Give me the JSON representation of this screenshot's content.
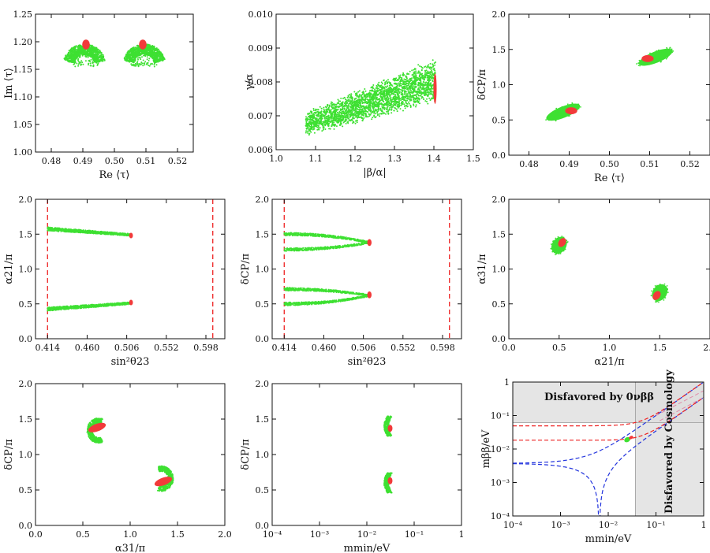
{
  "colors": {
    "green": "#3ee032",
    "red": "#f23a3a",
    "blue_dash": "#2233dd",
    "red_dash": "#ee2222",
    "pink_dash": "#e08aa8",
    "shade": "#dcdcdc"
  },
  "chart_data": [
    {
      "id": "p1",
      "type": "scatter",
      "xlabel": "Re ⟨τ⟩",
      "ylabel": "Im ⟨τ⟩",
      "xlim": [
        0.475,
        0.525
      ],
      "ylim": [
        1.0,
        1.25
      ],
      "xticks": [
        "0.48",
        "0.49",
        "0.50",
        "0.51",
        "0.52"
      ],
      "yticks": [
        "1.00",
        "1.05",
        "1.10",
        "1.15",
        "1.20",
        "1.25"
      ],
      "series": [
        {
          "name": "allowed",
          "color": "green",
          "regions": [
            {
              "shape": "crescent",
              "cx": 0.4905,
              "cy": 1.17,
              "rx": 0.0055,
              "ry": 0.035,
              "open": "down"
            },
            {
              "shape": "crescent",
              "cx": 0.5095,
              "cy": 1.17,
              "rx": 0.0055,
              "ry": 0.035,
              "open": "down"
            }
          ]
        },
        {
          "name": "best fit",
          "color": "red",
          "regions": [
            {
              "shape": "blob",
              "cx": 0.491,
              "cy": 1.195,
              "rx": 0.0012,
              "ry": 0.009
            },
            {
              "shape": "blob",
              "cx": 0.509,
              "cy": 1.195,
              "rx": 0.0012,
              "ry": 0.009
            }
          ]
        }
      ]
    },
    {
      "id": "p2",
      "type": "scatter",
      "xlabel": "|β/α|",
      "ylabel": "γ/α",
      "xlim": [
        1.0,
        1.5
      ],
      "ylim": [
        0.006,
        0.01
      ],
      "xticks": [
        "1.0",
        "1.1",
        "1.2",
        "1.3",
        "1.4",
        "1.5"
      ],
      "yticks": [
        "0.006",
        "0.007",
        "0.008",
        "0.009",
        "0.010"
      ],
      "series": [
        {
          "name": "allowed",
          "color": "green",
          "regions": [
            {
              "shape": "band",
              "x0": 1.075,
              "x1": 1.405,
              "y0_lo": 0.0064,
              "y0_hi": 0.0071,
              "y1_lo": 0.0074,
              "y1_hi": 0.0087
            }
          ]
        },
        {
          "name": "best fit",
          "color": "red",
          "regions": [
            {
              "shape": "blob",
              "cx": 1.403,
              "cy": 0.0078,
              "rx": 0.004,
              "ry": 0.00045
            }
          ]
        }
      ]
    },
    {
      "id": "p3",
      "type": "scatter",
      "xlabel": "Re ⟨τ⟩",
      "ylabel": "δCP/π",
      "xlim": [
        0.475,
        0.525
      ],
      "ylim": [
        0.0,
        2.0
      ],
      "xticks": [
        "0.48",
        "0.49",
        "0.50",
        "0.51",
        "0.52"
      ],
      "yticks": [
        "0.0",
        "0.5",
        "1.0",
        "1.5",
        "2.0"
      ],
      "series": [
        {
          "name": "allowed",
          "color": "green",
          "regions": [
            {
              "shape": "rotblob",
              "cx": 0.4885,
              "cy": 0.61,
              "rx": 0.0045,
              "ry": 0.08,
              "angle": -22
            },
            {
              "shape": "rotblob",
              "cx": 0.5115,
              "cy": 1.39,
              "rx": 0.0045,
              "ry": 0.08,
              "angle": -22
            }
          ]
        },
        {
          "name": "best fit",
          "color": "red",
          "regions": [
            {
              "shape": "blob",
              "cx": 0.4905,
              "cy": 0.63,
              "rx": 0.0015,
              "ry": 0.05
            },
            {
              "shape": "blob",
              "cx": 0.5095,
              "cy": 1.37,
              "rx": 0.0015,
              "ry": 0.05
            }
          ]
        }
      ]
    },
    {
      "id": "p4",
      "type": "scatter",
      "xlabel": "sin²θ23",
      "ylabel": "α21/π",
      "xlim": [
        0.4,
        0.62
      ],
      "ylim": [
        0.0,
        2.0
      ],
      "xticks": [
        "0.414",
        "0.460",
        "0.506",
        "0.552",
        "0.598"
      ],
      "xtick_values": [
        0.414,
        0.46,
        0.506,
        0.552,
        0.598
      ],
      "yticks": [
        "0.0",
        "0.5",
        "1.0",
        "1.5",
        "2.0"
      ],
      "vlines": [
        0.414,
        0.606
      ],
      "series": [
        {
          "name": "allowed",
          "color": "green",
          "regions": [
            {
              "shape": "strip",
              "x0": 0.414,
              "x1": 0.511,
              "y0": 1.575,
              "y1": 1.49,
              "w0": 0.05,
              "w1": 0.03
            },
            {
              "shape": "strip",
              "x0": 0.414,
              "x1": 0.511,
              "y0": 0.425,
              "y1": 0.51,
              "w0": 0.05,
              "w1": 0.03
            }
          ]
        },
        {
          "name": "best fit",
          "color": "red",
          "regions": [
            {
              "shape": "blob",
              "cx": 0.511,
              "cy": 1.48,
              "rx": 0.0022,
              "ry": 0.04
            },
            {
              "shape": "blob",
              "cx": 0.511,
              "cy": 0.52,
              "rx": 0.0022,
              "ry": 0.04
            }
          ]
        }
      ]
    },
    {
      "id": "p5",
      "type": "scatter",
      "xlabel": "sin²θ23",
      "ylabel": "δCP/π",
      "xlim": [
        0.4,
        0.62
      ],
      "ylim": [
        0.0,
        2.0
      ],
      "xticks": [
        "0.414",
        "0.460",
        "0.506",
        "0.552",
        "0.598"
      ],
      "xtick_values": [
        0.414,
        0.46,
        0.506,
        0.552,
        0.598
      ],
      "yticks": [
        "0.0",
        "0.5",
        "1.0",
        "1.5",
        "2.0"
      ],
      "vlines": [
        0.414,
        0.606
      ],
      "series": [
        {
          "name": "allowed",
          "color": "green",
          "regions": [
            {
              "shape": "vshape",
              "x0": 0.414,
              "x1": 0.513,
              "ytop": 1.5,
              "ybot": 1.28,
              "ytip": 1.38,
              "w": 0.045
            },
            {
              "shape": "vshape",
              "x0": 0.414,
              "x1": 0.513,
              "ytop": 0.71,
              "ybot": 0.5,
              "ytip": 0.62,
              "w": 0.045
            }
          ]
        },
        {
          "name": "best fit",
          "color": "red",
          "regions": [
            {
              "shape": "blob",
              "cx": 0.513,
              "cy": 1.38,
              "rx": 0.0025,
              "ry": 0.05
            },
            {
              "shape": "blob",
              "cx": 0.513,
              "cy": 0.63,
              "rx": 0.0025,
              "ry": 0.05
            }
          ]
        }
      ]
    },
    {
      "id": "p6",
      "type": "scatter",
      "xlabel": "α21/π",
      "ylabel": "α31/π",
      "xlim": [
        0.0,
        2.0
      ],
      "ylim": [
        0.0,
        2.0
      ],
      "xticks": [
        "0.0",
        "0.5",
        "1.0",
        "1.5",
        "2.0"
      ],
      "yticks": [
        "0.0",
        "0.5",
        "1.0",
        "1.5",
        "2.0"
      ],
      "series": [
        {
          "name": "allowed",
          "color": "green",
          "regions": [
            {
              "shape": "rotblob",
              "cx": 0.5,
              "cy": 1.34,
              "rx": 0.07,
              "ry": 0.13,
              "angle": 35
            },
            {
              "shape": "rotblob",
              "cx": 1.5,
              "cy": 0.66,
              "rx": 0.07,
              "ry": 0.13,
              "angle": 35
            }
          ]
        },
        {
          "name": "best fit",
          "color": "red",
          "regions": [
            {
              "shape": "rotblob",
              "cx": 0.53,
              "cy": 1.38,
              "rx": 0.035,
              "ry": 0.07,
              "angle": 35
            },
            {
              "shape": "rotblob",
              "cx": 1.47,
              "cy": 0.62,
              "rx": 0.035,
              "ry": 0.07,
              "angle": 35
            }
          ]
        }
      ]
    },
    {
      "id": "p7",
      "type": "scatter",
      "xlabel": "α31/π",
      "ylabel": "δCP/π",
      "xlim": [
        0.0,
        2.0
      ],
      "ylim": [
        0.0,
        2.0
      ],
      "xticks": [
        "0.0",
        "0.5",
        "1.0",
        "1.5",
        "2.0"
      ],
      "yticks": [
        "0.0",
        "0.5",
        "1.0",
        "1.5",
        "2.0"
      ],
      "series": [
        {
          "name": "allowed",
          "color": "green",
          "regions": [
            {
              "shape": "moon",
              "cx": 0.67,
              "cy": 1.34,
              "rx": 0.12,
              "ry": 0.2,
              "dir": 1
            },
            {
              "shape": "moon",
              "cx": 1.33,
              "cy": 0.66,
              "rx": 0.12,
              "ry": 0.2,
              "dir": -1
            }
          ]
        },
        {
          "name": "best fit",
          "color": "red",
          "regions": [
            {
              "shape": "rotblob",
              "cx": 0.65,
              "cy": 1.38,
              "rx": 0.04,
              "ry": 0.13,
              "angle": 70
            },
            {
              "shape": "rotblob",
              "cx": 1.35,
              "cy": 0.62,
              "rx": 0.04,
              "ry": 0.13,
              "angle": 70
            }
          ]
        }
      ]
    },
    {
      "id": "p8",
      "type": "scatter",
      "xlabel": "mmin/eV",
      "ylabel": "δCP/π",
      "xscale": "log",
      "xlim": [
        0.0001,
        1.0
      ],
      "ylim": [
        0.0,
        2.0
      ],
      "xticks": [
        "10⁻⁴",
        "10⁻³",
        "10⁻²",
        "10⁻¹",
        "1"
      ],
      "xtick_values": [
        0.0001,
        0.001,
        0.01,
        0.1,
        1.0
      ],
      "yticks": [
        "0.0",
        "0.5",
        "1.0",
        "1.5",
        "2.0"
      ],
      "series": [
        {
          "name": "allowed",
          "color": "green",
          "regions": [
            {
              "shape": "arc",
              "cx": 0.027,
              "cy": 1.4,
              "ry": 0.14,
              "bulge": 1
            },
            {
              "shape": "arc",
              "cx": 0.027,
              "cy": 0.6,
              "ry": 0.14,
              "bulge": 1
            }
          ]
        },
        {
          "name": "best fit",
          "color": "red",
          "regions": [
            {
              "shape": "blob",
              "cx": 0.031,
              "cy": 1.37,
              "rx": 0.06,
              "ry": 0.05
            },
            {
              "shape": "blob",
              "cx": 0.031,
              "cy": 0.63,
              "rx": 0.06,
              "ry": 0.05
            }
          ]
        }
      ]
    },
    {
      "id": "p9",
      "type": "line",
      "xlabel": "mmin/eV",
      "ylabel": "mββ/eV",
      "xscale": "log",
      "yscale": "log",
      "xlim": [
        0.0001,
        1.0
      ],
      "ylim": [
        0.0001,
        1.0
      ],
      "xticks": [
        "10⁻⁴",
        "10⁻³",
        "10⁻²",
        "10⁻¹",
        "1"
      ],
      "xtick_values": [
        0.0001,
        0.001,
        0.01,
        0.1,
        1.0
      ],
      "yticks": [
        "10⁻⁴",
        "10⁻³",
        "10⁻²",
        "10⁻¹",
        "1"
      ],
      "ytick_values": [
        0.0001,
        0.001,
        0.01,
        0.1,
        1.0
      ],
      "excluded_0vbb_above": 0.061,
      "excluded_cosmology_right_of": 0.037,
      "annotations": {
        "top": "Disfavored by 0νββ",
        "right": "Disfavored by Cosmology"
      },
      "series": [
        {
          "name": "NO bands",
          "color": "blue_dash",
          "lines": [
            "NO_max",
            "NO_min"
          ]
        },
        {
          "name": "IO bands",
          "color": "red_dash",
          "lines": [
            "IO_max",
            "IO_min"
          ]
        },
        {
          "name": "cosmology edge",
          "color": "pink_dash",
          "lines": [
            "guide_a",
            "guide_b"
          ]
        },
        {
          "name": "allowed points",
          "color": "green",
          "points": [
            {
              "x": 0.025,
              "y": 0.019
            }
          ]
        },
        {
          "name": "best fit",
          "color": "red",
          "points": [
            {
              "x": 0.03,
              "y": 0.022
            }
          ]
        }
      ]
    }
  ]
}
